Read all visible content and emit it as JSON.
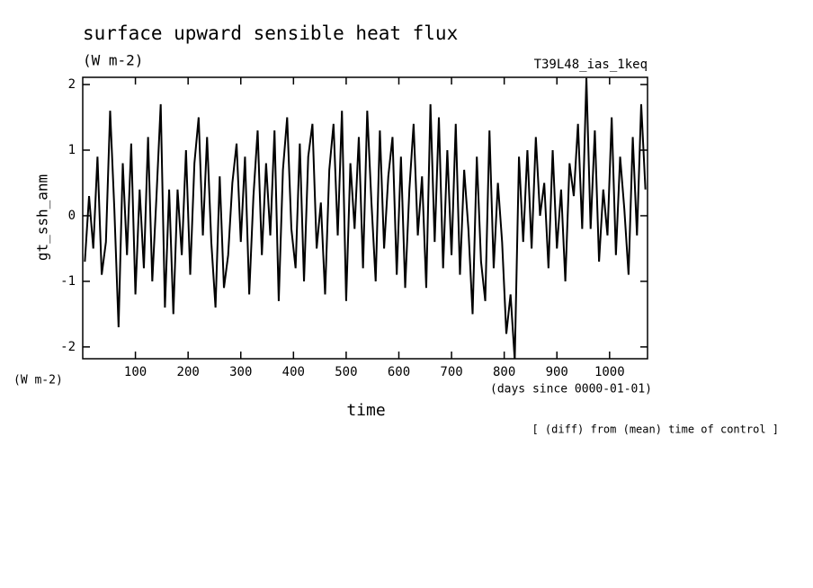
{
  "chart_data": {
    "type": "line",
    "title": "surface upward sensible heat flux",
    "units": "(W m-2)",
    "run_label": "T39L48_ias_1keq",
    "y_label": "gt_ssh_anm",
    "y_units": "(W m-2)",
    "x_label": "time",
    "x_units": "(days since 0000-01-01)",
    "note": "[ (diff) from (mean) time of control ]",
    "color": "#000000",
    "xlim": [
      0,
      1072
    ],
    "ylim": [
      -2.18,
      2.11
    ],
    "xticks": [
      100,
      200,
      300,
      400,
      500,
      600,
      700,
      800,
      900,
      1000
    ],
    "yticks": [
      -2,
      -1,
      0,
      1,
      2
    ],
    "x": [
      4,
      12,
      20,
      28,
      36,
      44,
      52,
      60,
      68,
      76,
      84,
      92,
      100,
      108,
      116,
      124,
      132,
      140,
      148,
      156,
      164,
      172,
      180,
      188,
      196,
      204,
      212,
      220,
      228,
      236,
      244,
      252,
      260,
      268,
      276,
      284,
      292,
      300,
      308,
      316,
      324,
      332,
      340,
      348,
      356,
      364,
      372,
      380,
      388,
      396,
      404,
      412,
      420,
      428,
      436,
      444,
      452,
      460,
      468,
      476,
      484,
      492,
      500,
      508,
      516,
      524,
      532,
      540,
      548,
      556,
      564,
      572,
      580,
      588,
      596,
      604,
      612,
      620,
      628,
      636,
      644,
      652,
      660,
      668,
      676,
      684,
      692,
      700,
      708,
      716,
      724,
      732,
      740,
      748,
      756,
      764,
      772,
      780,
      788,
      796,
      804,
      812,
      820,
      828,
      836,
      844,
      852,
      860,
      868,
      876,
      884,
      892,
      900,
      908,
      916,
      924,
      932,
      940,
      948,
      956,
      964,
      972,
      980,
      988,
      996,
      1004,
      1012,
      1020,
      1028,
      1036,
      1044,
      1052,
      1060,
      1068
    ],
    "values": [
      -0.7,
      0.3,
      -0.5,
      0.9,
      -0.9,
      -0.4,
      1.6,
      0.1,
      -1.7,
      0.8,
      -0.6,
      1.1,
      -1.2,
      0.4,
      -0.8,
      1.2,
      -1.0,
      0.3,
      1.7,
      -1.4,
      0.4,
      -1.5,
      0.4,
      -0.6,
      1.0,
      -0.9,
      0.8,
      1.5,
      -0.3,
      1.2,
      -0.4,
      -1.4,
      0.6,
      -1.1,
      -0.6,
      0.5,
      1.1,
      -0.4,
      0.9,
      -1.2,
      0.3,
      1.3,
      -0.6,
      0.8,
      -0.3,
      1.3,
      -1.3,
      0.7,
      1.5,
      -0.2,
      -0.8,
      1.1,
      -1.0,
      0.9,
      1.4,
      -0.5,
      0.2,
      -1.2,
      0.7,
      1.4,
      -0.3,
      1.6,
      -1.3,
      0.8,
      -0.2,
      1.2,
      -0.8,
      1.6,
      0.2,
      -1.0,
      1.3,
      -0.5,
      0.6,
      1.2,
      -0.9,
      0.9,
      -1.1,
      0.4,
      1.4,
      -0.3,
      0.6,
      -1.1,
      1.7,
      -0.4,
      1.5,
      -0.8,
      1.0,
      -0.6,
      1.4,
      -0.9,
      0.7,
      -0.2,
      -1.5,
      0.9,
      -0.7,
      -1.3,
      1.3,
      -0.8,
      0.5,
      -0.4,
      -1.8,
      -1.2,
      -2.2,
      0.9,
      -0.4,
      1.0,
      -0.5,
      1.2,
      0.0,
      0.5,
      -0.8,
      1.0,
      -0.5,
      0.4,
      -1.0,
      0.8,
      0.3,
      1.4,
      -0.2,
      2.1,
      -0.2,
      1.3,
      -0.7,
      0.4,
      -0.3,
      1.5,
      -0.6,
      0.9,
      0.1,
      -0.9,
      1.2,
      -0.3,
      1.7,
      0.4
    ]
  }
}
